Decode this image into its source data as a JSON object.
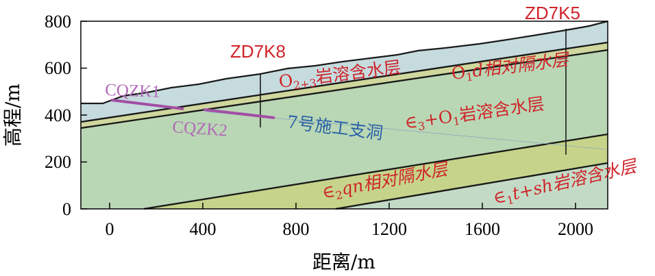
{
  "axes": {
    "x_title": "距离/m",
    "y_title": "高程/m",
    "x_ticks": [
      "0",
      "400",
      "800",
      "1200",
      "1600",
      "2000"
    ],
    "y_ticks": [
      "0",
      "200",
      "400",
      "600",
      "800"
    ],
    "x_range": [
      -120,
      2120
    ],
    "y_range": [
      0,
      800
    ]
  },
  "boreholes": {
    "zd7k8": "ZD7K8",
    "zd7k5": "ZD7K5",
    "cqzk1": "CQZK1",
    "cqzk2": "CQZK2"
  },
  "labels": {
    "tunnel": "7号施工支洞"
  },
  "layer_labels": {
    "o23_sym": "O",
    "o23_sub": "2+3",
    "o23_rest": "岩溶含水层",
    "o1d_sym": "O",
    "o1d_sub": "1",
    "o1d_rest": "d相对隔水层",
    "e3o1_sym": "∈",
    "e3o1_sub1": "3",
    "e3o1_mid": "+O",
    "e3o1_sub2": "1",
    "e3o1_rest": "岩溶含水层",
    "e2qn_sym": "∈",
    "e2qn_sub": "2",
    "e2qn_rest": "qn相对隔水层",
    "e1t_sym": "∈",
    "e1t_sub": "1",
    "e1t_rest": "t+sh岩溶含水层"
  },
  "colors": {
    "o23_layer": "#c6dbde",
    "o1d_layer": "#cfd79e",
    "e3o1_layer": "#b9d7b4",
    "e2qn_layer": "#c5d48a",
    "e1t_layer": "#c3dbc6",
    "boundary": "#1a1a1a",
    "tunnel": "#a24fa6",
    "label_red": "#d0232a",
    "label_purple": "#b16ab8",
    "label_blue": "#2b61a8"
  }
}
